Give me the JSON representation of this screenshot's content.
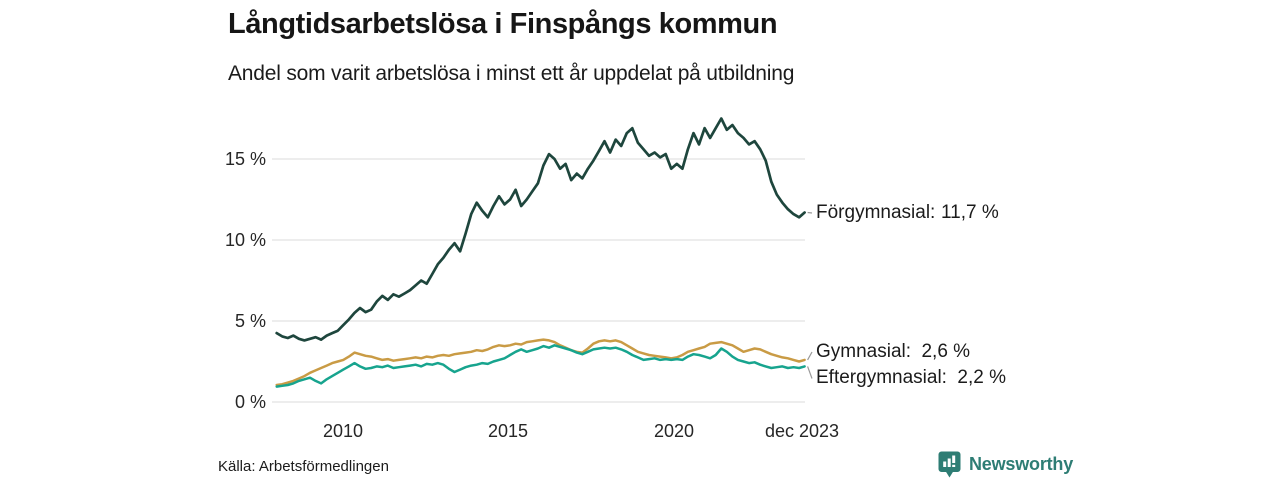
{
  "header": {
    "title": "Långtidsarbetslösa i Finspångs kommun",
    "subtitle": "Andel som varit arbetslösa i minst ett år uppdelat på utbildning"
  },
  "footer": {
    "source": "Källa: Arbetsförmedlingen",
    "brand": "Newsworthy"
  },
  "colors": {
    "gridline": "#e2e2e2",
    "connector": "#999999",
    "brand": "#2e7d74",
    "text": "#1b1b1b"
  },
  "chart_data": {
    "type": "line",
    "title": "Långtidsarbetslösa i Finspångs kommun",
    "subtitle": "Andel som varit arbetslösa i minst ett år uppdelat på utbildning",
    "unit": "%",
    "grid": true,
    "legend_position": "end-of-line-labels",
    "x_start": 2008,
    "x_end": 2023.9167,
    "x_axis": {
      "ticks": [
        "2010",
        "2015",
        "2020",
        "dec 2023"
      ],
      "tick_values": [
        2010,
        2015,
        2020,
        2023.9167
      ]
    },
    "y_axis": {
      "ticks": [
        "15 %",
        "10 %",
        "5 %",
        "0 %"
      ],
      "tick_values": [
        15,
        10,
        5,
        0
      ],
      "range": [
        0,
        18
      ]
    },
    "series": [
      {
        "name": "Förgymnasial",
        "label": "Förgymnasial:",
        "value_label": "11,7 %",
        "end_value": 11.7,
        "color": "#1e463d",
        "width": 2.7,
        "values": [
          4.25,
          4.05,
          3.95,
          4.1,
          3.9,
          3.8,
          3.9,
          4.0,
          3.85,
          4.1,
          4.25,
          4.4,
          4.75,
          5.1,
          5.5,
          5.8,
          5.55,
          5.7,
          6.2,
          6.55,
          6.3,
          6.65,
          6.5,
          6.7,
          6.9,
          7.2,
          7.5,
          7.3,
          7.9,
          8.5,
          8.9,
          9.4,
          9.8,
          9.3,
          10.4,
          11.6,
          12.3,
          11.8,
          11.4,
          12.1,
          12.7,
          12.2,
          12.5,
          13.1,
          12.1,
          12.5,
          13.0,
          13.5,
          14.6,
          15.3,
          15.0,
          14.4,
          14.7,
          13.7,
          14.1,
          13.8,
          14.4,
          14.9,
          15.5,
          16.1,
          15.4,
          16.2,
          15.8,
          16.6,
          16.9,
          16.0,
          15.6,
          15.2,
          15.4,
          15.1,
          15.3,
          14.4,
          14.7,
          14.4,
          15.6,
          16.6,
          15.9,
          16.9,
          16.3,
          16.9,
          17.5,
          16.8,
          17.1,
          16.6,
          16.3,
          15.9,
          16.1,
          15.6,
          14.9,
          13.6,
          12.8,
          12.3,
          11.9,
          11.6,
          11.4,
          11.7
        ]
      },
      {
        "name": "Gymnasial",
        "label": "Gymnasial:",
        "value_label": "2,6 %",
        "end_value": 2.6,
        "color": "#c99b45",
        "width": 2.5,
        "values": [
          1.05,
          1.1,
          1.2,
          1.3,
          1.45,
          1.6,
          1.8,
          1.95,
          2.1,
          2.25,
          2.4,
          2.5,
          2.6,
          2.8,
          3.05,
          2.95,
          2.85,
          2.8,
          2.7,
          2.6,
          2.65,
          2.55,
          2.6,
          2.65,
          2.7,
          2.75,
          2.7,
          2.8,
          2.75,
          2.85,
          2.9,
          2.85,
          2.95,
          3.0,
          3.05,
          3.1,
          3.2,
          3.15,
          3.25,
          3.4,
          3.5,
          3.45,
          3.5,
          3.6,
          3.55,
          3.7,
          3.75,
          3.8,
          3.85,
          3.8,
          3.7,
          3.5,
          3.35,
          3.2,
          3.1,
          3.05,
          3.3,
          3.6,
          3.75,
          3.8,
          3.75,
          3.8,
          3.7,
          3.5,
          3.3,
          3.1,
          3.0,
          2.9,
          2.85,
          2.8,
          2.75,
          2.7,
          2.75,
          2.9,
          3.1,
          3.2,
          3.3,
          3.4,
          3.6,
          3.65,
          3.7,
          3.6,
          3.5,
          3.3,
          3.1,
          3.2,
          3.3,
          3.25,
          3.1,
          2.95,
          2.85,
          2.75,
          2.7,
          2.6,
          2.5,
          2.6
        ]
      },
      {
        "name": "Eftergymnasial",
        "label": "Eftergymnasial:",
        "value_label": "2,2 %",
        "end_value": 2.2,
        "color": "#17a48e",
        "width": 2.5,
        "values": [
          0.95,
          1.0,
          1.05,
          1.15,
          1.3,
          1.4,
          1.5,
          1.3,
          1.15,
          1.4,
          1.6,
          1.8,
          2.0,
          2.2,
          2.4,
          2.2,
          2.05,
          2.1,
          2.2,
          2.15,
          2.25,
          2.1,
          2.15,
          2.2,
          2.25,
          2.3,
          2.2,
          2.35,
          2.3,
          2.4,
          2.3,
          2.05,
          1.85,
          2.0,
          2.15,
          2.25,
          2.3,
          2.4,
          2.35,
          2.5,
          2.6,
          2.7,
          2.9,
          3.1,
          3.25,
          3.1,
          3.2,
          3.3,
          3.45,
          3.35,
          3.5,
          3.4,
          3.3,
          3.2,
          3.05,
          2.95,
          3.1,
          3.25,
          3.3,
          3.35,
          3.3,
          3.35,
          3.25,
          3.1,
          2.9,
          2.75,
          2.6,
          2.65,
          2.7,
          2.6,
          2.65,
          2.6,
          2.65,
          2.6,
          2.8,
          2.95,
          2.9,
          2.8,
          2.7,
          2.9,
          3.3,
          3.1,
          2.8,
          2.6,
          2.5,
          2.4,
          2.45,
          2.3,
          2.2,
          2.1,
          2.15,
          2.2,
          2.1,
          2.15,
          2.1,
          2.2
        ]
      }
    ]
  }
}
